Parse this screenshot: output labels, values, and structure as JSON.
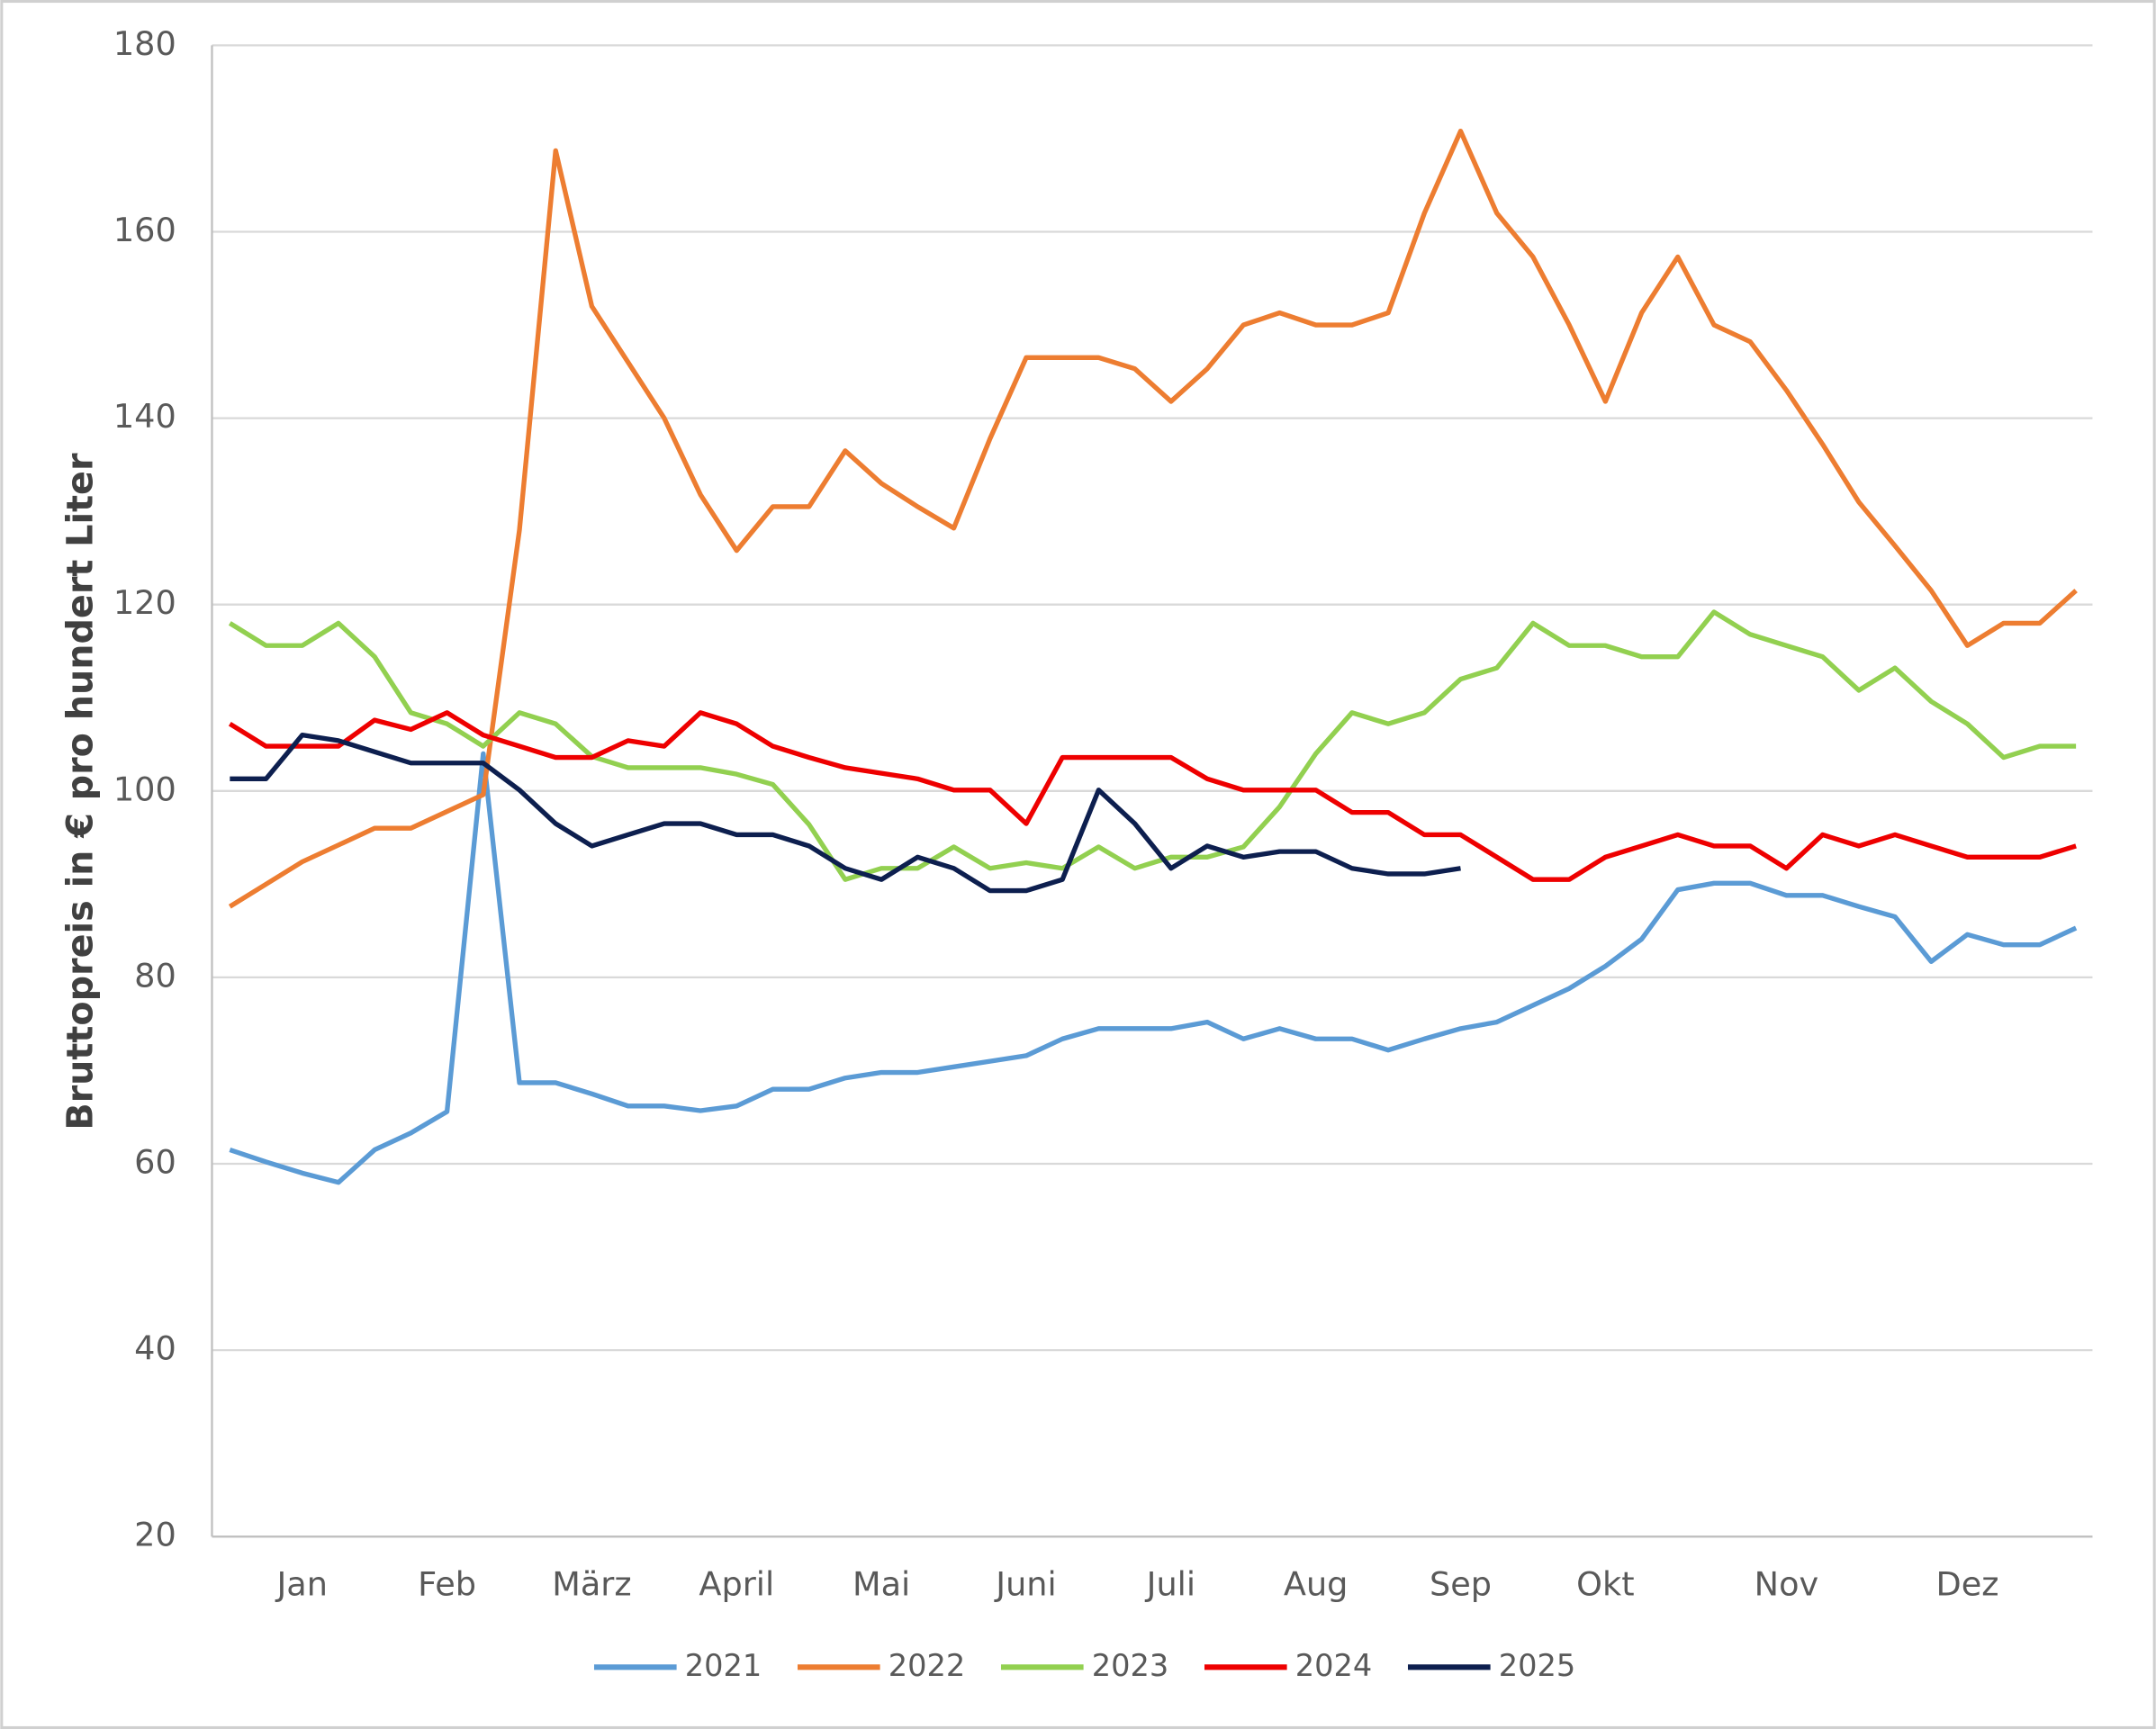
{
  "chart_data": {
    "type": "line",
    "ylabel": "Bruttopreis in € pro hundert Liter",
    "categories": [
      null,
      null,
      "Jan",
      null,
      null,
      null,
      "Feb",
      null,
      null,
      null,
      "März",
      null,
      null,
      null,
      "April",
      null,
      null,
      null,
      "Mai",
      null,
      null,
      null,
      "Juni",
      null,
      null,
      null,
      "Juli",
      null,
      null,
      null,
      "Aug",
      null,
      null,
      null,
      "Sep",
      null,
      null,
      null,
      "Okt",
      null,
      null,
      null,
      null,
      "Nov",
      null,
      null,
      null,
      null,
      "Dez",
      null,
      null,
      null
    ],
    "series": [
      {
        "name": "2021",
        "color": "#5b9bd5",
        "values": [
          61.5,
          60.2,
          59,
          58,
          61.5,
          63.3,
          65.6,
          104,
          68.7,
          68.7,
          67.5,
          66.2,
          66.2,
          65.7,
          66.2,
          68,
          68,
          69.2,
          69.8,
          69.8,
          70.4,
          71,
          71.6,
          73.4,
          74.5,
          74.5,
          74.5,
          75.2,
          73.4,
          74.5,
          73.4,
          73.4,
          72.2,
          73.4,
          74.5,
          75.2,
          77,
          78.8,
          81.2,
          84.1,
          89.4,
          90.1,
          90.1,
          88.8,
          88.8,
          87.6,
          86.5,
          81.7,
          84.6,
          83.5,
          83.5,
          85.3
        ]
      },
      {
        "name": "2022",
        "color": "#ed7d31",
        "values": [
          87.6,
          90,
          92.4,
          94.2,
          96,
          96,
          97.8,
          99.6,
          128,
          168.7,
          152,
          146,
          140,
          131.8,
          125.8,
          130.5,
          130.5,
          136.5,
          133,
          130.5,
          128.2,
          137.8,
          146.5,
          146.5,
          146.5,
          145.3,
          141.8,
          145.3,
          150,
          151.3,
          150,
          150,
          151.3,
          162,
          170.8,
          162,
          157.3,
          150,
          141.8,
          151.3,
          157.3,
          150,
          148.2,
          143,
          137.2,
          131,
          126.3,
          121.5,
          115.6,
          118,
          118,
          121.5
        ]
      },
      {
        "name": "2023",
        "color": "#92d050",
        "values": [
          118,
          115.6,
          115.6,
          118,
          114.4,
          108.4,
          107.2,
          104.8,
          108.4,
          107.2,
          103.7,
          102.5,
          102.5,
          102.5,
          101.8,
          100.7,
          96.4,
          90.5,
          91.7,
          91.7,
          94,
          91.7,
          92.3,
          91.7,
          94,
          91.7,
          92.9,
          92.9,
          94,
          98.3,
          104,
          108.4,
          107.2,
          108.4,
          112,
          113.2,
          118,
          115.6,
          115.6,
          114.4,
          114.4,
          119.2,
          116.8,
          115.6,
          114.4,
          110.8,
          113.2,
          109.6,
          107.2,
          103.6,
          104.8,
          104.8
        ]
      },
      {
        "name": "2024",
        "color": "#ee0000",
        "values": [
          107.2,
          104.8,
          104.8,
          104.8,
          107.6,
          106.6,
          108.4,
          106,
          104.8,
          103.6,
          103.6,
          105.4,
          104.8,
          108.4,
          107.2,
          104.8,
          103.6,
          102.5,
          101.9,
          101.3,
          100.1,
          100.1,
          96.5,
          103.6,
          103.6,
          103.6,
          103.6,
          101.3,
          100.1,
          100.1,
          100.1,
          97.7,
          97.7,
          95.3,
          95.3,
          92.9,
          90.5,
          90.5,
          92.9,
          94.1,
          95.3,
          94.1,
          94.1,
          91.7,
          95.3,
          94.1,
          95.3,
          94.1,
          92.9,
          92.9,
          92.9,
          94.1
        ]
      },
      {
        "name": "2025",
        "color": "#0d1f4f",
        "values": [
          101.3,
          101.3,
          106,
          105.4,
          104.2,
          103,
          103,
          103,
          100.1,
          96.5,
          94.1,
          95.3,
          96.5,
          96.5,
          95.3,
          95.3,
          94.1,
          91.7,
          90.5,
          92.9,
          91.7,
          89.3,
          89.3,
          90.5,
          100.1,
          96.5,
          91.7,
          94.1,
          92.9,
          93.5,
          93.5,
          91.7,
          91.1,
          91.1,
          91.7,
          null,
          null,
          null,
          null,
          null,
          null,
          null,
          null,
          null,
          null,
          null,
          null,
          null,
          null,
          null,
          null,
          null
        ]
      }
    ],
    "ylim": [
      20,
      180
    ],
    "yticks": [
      20,
      40,
      60,
      80,
      100,
      120,
      140,
      160,
      180
    ],
    "grid": true,
    "legend": "bottom"
  }
}
